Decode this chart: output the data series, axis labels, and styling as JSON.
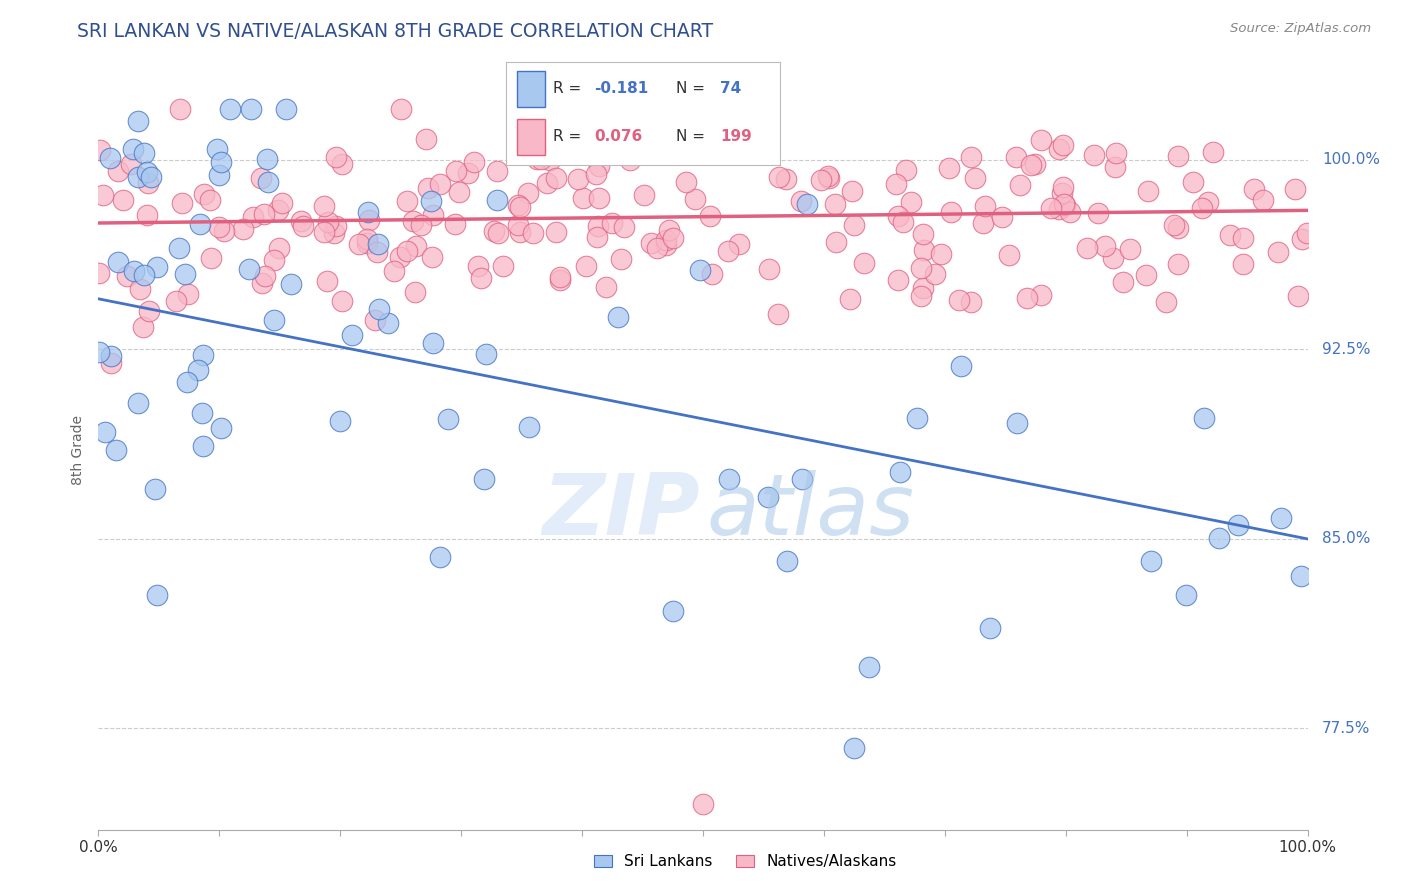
{
  "title": "SRI LANKAN VS NATIVE/ALASKAN 8TH GRADE CORRELATION CHART",
  "source": "Source: ZipAtlas.com",
  "ylabel": "8th Grade",
  "ytick_labels": [
    "77.5%",
    "85.0%",
    "92.5%",
    "100.0%"
  ],
  "ytick_values": [
    0.775,
    0.85,
    0.925,
    1.0
  ],
  "xlim": [
    0.0,
    1.0
  ],
  "ylim": [
    0.735,
    1.035
  ],
  "blue_color": "#a8c8f0",
  "blue_edge_color": "#4472c4",
  "pink_color": "#f8b8c8",
  "pink_edge_color": "#e06080",
  "blue_line_color": "#4472c4",
  "pink_line_color": "#e06080",
  "watermark_zip": "ZIP",
  "watermark_atlas": "atlas",
  "legend_blue_r": "-0.181",
  "legend_blue_n": "74",
  "legend_pink_r": "0.076",
  "legend_pink_n": "199",
  "grid_color": "#cccccc",
  "title_color": "#2f4f8f",
  "source_color": "#888888",
  "ylabel_color": "#666666",
  "tick_label_color": "#333333",
  "right_tick_color": "#4472c4"
}
